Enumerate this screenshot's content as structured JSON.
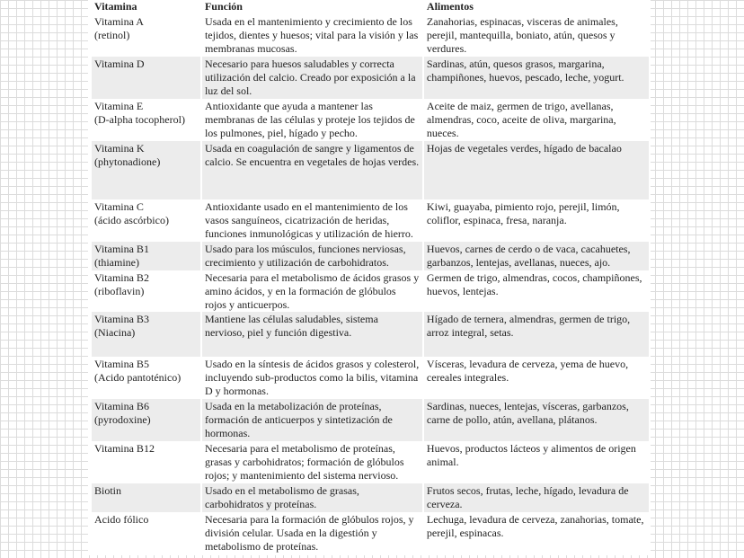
{
  "headers": [
    "Vitamina",
    "Función",
    "Alimentos"
  ],
  "rows": [
    {
      "vitamina": [
        "Vitamina A",
        "(retinol)"
      ],
      "funcion": "Usada en el mantenimiento y crecimiento de los tejidos, dientes y huesos; vital para la visión y las membranas mucosas.",
      "alimentos": "Zanahorias, espinacas, visceras de animales, perejil, mantequilla, boniato, atún, quesos y verdures."
    },
    {
      "vitamina": [
        "Vitamina D",
        ""
      ],
      "funcion": "Necesario para huesos saludables y correcta utilización del calcio. Creado por exposición a la luz del sol.",
      "alimentos": "Sardinas, atún, quesos grasos, margarina, champiñones, huevos, pescado, leche, yogurt."
    },
    {
      "vitamina": [
        "Vitamina E",
        "(D-alpha tocopherol)"
      ],
      "funcion": "Antioxidante que ayuda a mantener las membranas de las células y proteje los tejidos de los pulmones, piel, hígado y pecho.",
      "alimentos": "Aceite de maiz, germen de trigo, avellanas, almendras, coco, aceite de oliva, margarina, nueces."
    },
    {
      "vitamina": [
        "Vitamina K",
        "(phytonadione)"
      ],
      "funcion": "Usada en coagulación de sangre y ligamentos de calcio. Se encuentra en vegetales de hojas verdes.",
      "alimentos": "Hojas de vegetales verdes, hígado de bacalao"
    },
    {
      "vitamina": [
        "Vitamina C",
        "(ácido ascórbico)"
      ],
      "funcion": "Antioxidante usado en el mantenimiento de los vasos sanguíneos, cicatrización de heridas, funciones inmunológicas y utilización de hierro.",
      "alimentos": "Kiwi, guayaba, pimiento rojo, perejil, limón, coliflor, espinaca, fresa, naranja."
    },
    {
      "vitamina": [
        "Vitamina B1",
        "(thiamine)"
      ],
      "funcion": "Usado para los músculos, funciones nerviosas, crecimiento y utilización de carbohidratos.",
      "alimentos": "Huevos, carnes de cerdo o de vaca, cacahuetes, garbanzos, lentejas, avellanas, nueces, ajo."
    },
    {
      "vitamina": [
        "Vitamina B2",
        "(riboflavin)"
      ],
      "funcion": "Necesaria para el metabolismo de ácidos grasos y amino ácidos, y en la formación de glóbulos rojos y anticuerpos.",
      "alimentos": "Germen de trigo, almendras, cocos, champiñones, huevos, lentejas."
    },
    {
      "vitamina": [
        "Vitamina B3",
        "(Niacina)"
      ],
      "funcion": "Mantiene las células saludables, sistema nervioso, piel y función digestiva.",
      "alimentos": "Hígado de ternera, almendras, germen de trigo, arroz integral, setas."
    },
    {
      "vitamina": [
        "Vitamina B5",
        "(Acido pantoténico)"
      ],
      "funcion": "Usado en la síntesis de ácidos grasos y colesterol, incluyendo sub-productos como la bilis, vitamina D y hormonas.",
      "alimentos": "Vísceras, levadura de cerveza, yema de huevo, cereales integrales."
    },
    {
      "vitamina": [
        "Vitamina B6",
        "(pyrodoxine)"
      ],
      "funcion": "Usada en la metabolización de proteínas, formación de anticuerpos y sintetización de hormonas.",
      "alimentos": "Sardinas, nueces, lentejas, vísceras, garbanzos, carne de pollo, atún, avellana, plátanos."
    },
    {
      "vitamina": [
        "Vitamina B12",
        ""
      ],
      "funcion": "Necesaria para el metabolismo de proteínas, grasas y carbohidratos; formación de glóbulos rojos; y mantenimiento del sistema nervioso.",
      "alimentos": "Huevos, productos lácteos y alimentos de origen animal."
    },
    {
      "vitamina": [
        "Biotin",
        ""
      ],
      "funcion": "Usado en el metabolismo de grasas, carbohidratos y proteínas.",
      "alimentos": "Frutos secos, frutas, leche, hígado, levadura de cerveza."
    },
    {
      "vitamina": [
        "Acido fólico",
        ""
      ],
      "funcion": "Necesaria para la formación de glóbulos rojos, y división celular. Usada en la digestión y metabolismo de proteínas.",
      "alimentos": "Lechuga, levadura de cerveza, zanahorias, tomate, perejil, espinacas."
    }
  ]
}
